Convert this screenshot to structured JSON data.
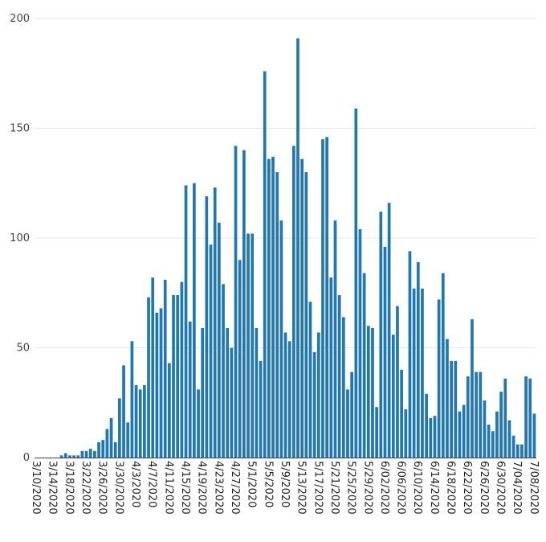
{
  "chart_data": {
    "type": "bar",
    "title": "",
    "xlabel": "",
    "ylabel": "",
    "ylim": [
      0,
      200
    ],
    "yticks": [
      0,
      50,
      100,
      150,
      200
    ],
    "grid": true,
    "bar_color": "#1f77b4",
    "start_date": "3/10/2020",
    "x_tick_labels": [
      "3/10/2020",
      "3/14/2020",
      "3/18/2020",
      "3/22/2020",
      "3/26/2020",
      "3/30/2020",
      "4/3/2020",
      "4/7/2020",
      "4/11/2020",
      "4/15/2020",
      "4/19/2020",
      "4/23/2020",
      "4/27/2020",
      "5/1/2020",
      "5/5/2020",
      "5/9/2020",
      "5/13/2020",
      "5/17/2020",
      "5/21/2020",
      "5/25/2020",
      "5/29/2020",
      "6/02/2020",
      "6/06/2020",
      "6/10/2020",
      "6/14/2020",
      "6/18/2020",
      "6/22/2020",
      "6/26/2020",
      "6/30/2020",
      "7/04/2020",
      "7/08/2020"
    ],
    "values": [
      0,
      0,
      0,
      0,
      0,
      0,
      1,
      2,
      1,
      1,
      1,
      3,
      3,
      4,
      3,
      7,
      8,
      13,
      18,
      7,
      27,
      42,
      16,
      53,
      33,
      31,
      33,
      73,
      82,
      66,
      68,
      81,
      43,
      74,
      74,
      80,
      124,
      62,
      125,
      31,
      59,
      119,
      97,
      123,
      107,
      79,
      59,
      50,
      142,
      90,
      140,
      102,
      102,
      59,
      44,
      176,
      136,
      137,
      130,
      108,
      57,
      53,
      142,
      191,
      136,
      130,
      71,
      48,
      57,
      145,
      146,
      82,
      108,
      74,
      64,
      31,
      39,
      159,
      104,
      84,
      60,
      59,
      23,
      112,
      96,
      116,
      56,
      69,
      40,
      22,
      94,
      77,
      89,
      77,
      29,
      18,
      19,
      72,
      84,
      54,
      44,
      44,
      21,
      24,
      37,
      63,
      39,
      39,
      26,
      15,
      12,
      21,
      30,
      36,
      17,
      10,
      6,
      6,
      37,
      36,
      20
    ]
  }
}
